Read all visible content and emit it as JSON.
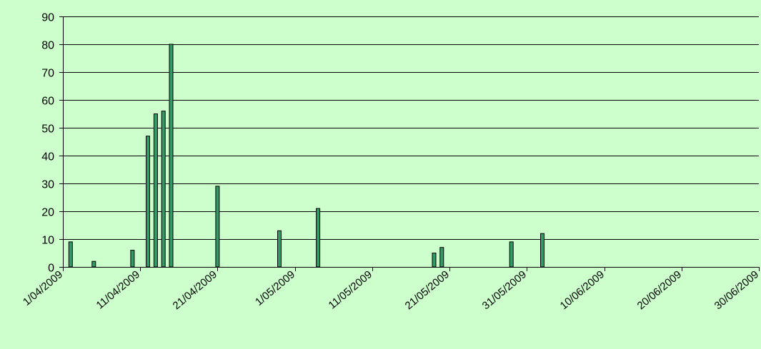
{
  "chart_data": {
    "type": "bar",
    "title": "",
    "xlabel": "",
    "ylabel": "",
    "ylim": [
      0,
      90
    ],
    "yticks": [
      "0",
      "10",
      "20",
      "30",
      "40",
      "50",
      "60",
      "70",
      "80",
      "90"
    ],
    "xlim": [
      "1/04/2009",
      "30/06/2009"
    ],
    "xticks": [
      "1/04/2009",
      "11/04/2009",
      "21/04/2009",
      "1/05/2009",
      "11/05/2009",
      "21/05/2009",
      "31/05/2009",
      "10/06/2009",
      "20/06/2009",
      "30/06/2009"
    ],
    "grid": true,
    "legend": "none",
    "colors": {
      "bar": "#339966",
      "bar_edge": "#000000",
      "grid": "#000000",
      "background": "#ccffcc"
    },
    "series": [
      {
        "dates": [
          "2/04/2009",
          "5/04/2009",
          "10/04/2009",
          "12/04/2009",
          "13/04/2009",
          "14/04/2009",
          "15/04/2009",
          "21/04/2009",
          "29/04/2009",
          "4/05/2009",
          "19/05/2009",
          "20/05/2009",
          "29/05/2009",
          "2/06/2009"
        ],
        "values": [
          9,
          2,
          6,
          47,
          55,
          56,
          80,
          29,
          13,
          21,
          5,
          7,
          9,
          12
        ]
      }
    ]
  }
}
